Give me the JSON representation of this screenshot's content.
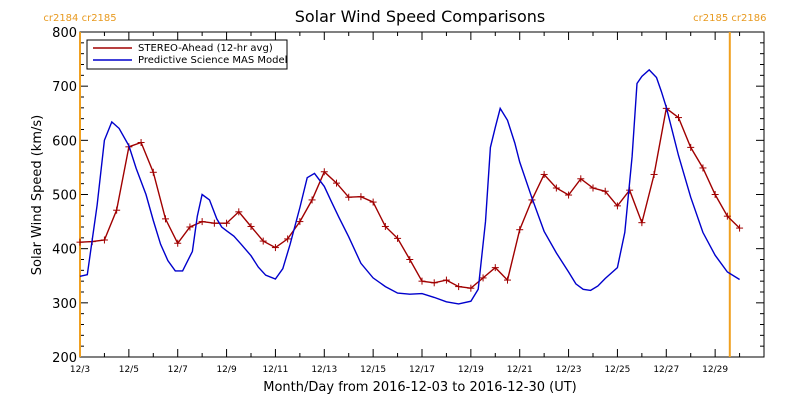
{
  "chart_data": {
    "type": "line",
    "title": "Solar Wind Speed Comparisons",
    "xlabel": "Month/Day from 2016-12-03 to 2016-12-30 (UT)",
    "ylabel": "Solar Wind Speed (km/s)",
    "ylim": [
      200,
      800
    ],
    "xlim": [
      0,
      28
    ],
    "x_start": "2016-12-03",
    "yticks": [
      200,
      300,
      400,
      500,
      600,
      700,
      800
    ],
    "xtick_labels": [
      {
        "x": 0,
        "label": "12/3"
      },
      {
        "x": 2,
        "label": "12/5"
      },
      {
        "x": 4,
        "label": "12/7"
      },
      {
        "x": 6,
        "label": "12/9"
      },
      {
        "x": 8,
        "label": "12/11"
      },
      {
        "x": 10,
        "label": "12/13"
      },
      {
        "x": 12,
        "label": "12/15"
      },
      {
        "x": 14,
        "label": "12/17"
      },
      {
        "x": 16,
        "label": "12/19"
      },
      {
        "x": 18,
        "label": "12/21"
      },
      {
        "x": 20,
        "label": "12/23"
      },
      {
        "x": 22,
        "label": "12/25"
      },
      {
        "x": 24,
        "label": "12/27"
      },
      {
        "x": 26,
        "label": "12/29"
      }
    ],
    "carrington_markers": [
      {
        "x": 0,
        "label_left": "cr2184",
        "label_right": "cr2185",
        "position": "top-left"
      },
      {
        "x": 26.6,
        "label_left": "cr2185",
        "label_right": "cr2186",
        "position": "top-right"
      }
    ],
    "legend_position": "top-left",
    "series": [
      {
        "name": "STEREO-Ahead (12-hr avg)",
        "color": "#a00000",
        "marker": "plus",
        "x": [
          0,
          0.5,
          1,
          1.5,
          2,
          2.5,
          3,
          3.5,
          4,
          4.5,
          5,
          5.5,
          6,
          6.5,
          7,
          7.5,
          8,
          8.5,
          9,
          9.5,
          10,
          10.5,
          11,
          11.5,
          12,
          12.5,
          13,
          13.5,
          14,
          14.5,
          15,
          15.5,
          16,
          16.5,
          17,
          17.5,
          18,
          18.5,
          19,
          19.5,
          20,
          20.5,
          21,
          21.5,
          22,
          22.5,
          23,
          23.5,
          24,
          24.5,
          25,
          25.5,
          26,
          26.5,
          27
        ],
        "values": [
          412,
          413,
          416,
          471,
          588,
          596,
          541,
          455,
          410,
          440,
          450,
          447,
          447,
          468,
          441,
          414,
          402,
          418,
          450,
          490,
          542,
          521,
          495,
          496,
          486,
          441,
          419,
          380,
          340,
          337,
          342,
          330,
          327,
          346,
          365,
          342,
          435,
          490,
          537,
          512,
          499,
          529,
          512,
          506,
          479,
          508,
          448,
          537,
          659,
          642,
          587,
          549,
          500,
          460,
          438
        ]
      },
      {
        "name": "Predictive Science MAS Model",
        "color": "#0000cc",
        "marker": "none",
        "x": [
          0,
          0.3,
          0.7,
          1,
          1.3,
          1.6,
          2,
          2.3,
          2.7,
          3,
          3.3,
          3.6,
          3.9,
          4.2,
          4.6,
          4.8,
          5,
          5.3,
          5.6,
          5.8,
          6,
          6.3,
          6.6,
          7,
          7.3,
          7.6,
          8,
          8.3,
          8.6,
          9,
          9.3,
          9.6,
          10,
          10.3,
          10.6,
          11,
          11.5,
          12,
          12.5,
          13,
          13.5,
          14,
          14.5,
          15,
          15.5,
          16,
          16.3,
          16.6,
          16.8,
          17,
          17.2,
          17.5,
          17.8,
          18,
          18.5,
          19,
          19.5,
          20,
          20.3,
          20.6,
          20.9,
          21.2,
          21.5,
          22,
          22.3,
          22.6,
          22.8,
          23,
          23.3,
          23.6,
          23.8,
          24,
          24.5,
          25,
          25.5,
          26,
          26.5,
          27
        ],
        "values": [
          349,
          352,
          480,
          600,
          634,
          622,
          590,
          548,
          500,
          452,
          408,
          378,
          359,
          359,
          395,
          460,
          500,
          490,
          455,
          440,
          433,
          423,
          408,
          387,
          366,
          351,
          344,
          363,
          408,
          476,
          531,
          539,
          515,
          486,
          458,
          422,
          373,
          346,
          330,
          318,
          316,
          317,
          310,
          302,
          298,
          303,
          325,
          450,
          587,
          624,
          659,
          637,
          595,
          560,
          494,
          432,
          392,
          357,
          335,
          325,
          323,
          331,
          345,
          365,
          430,
          570,
          705,
          718,
          730,
          716,
          690,
          661,
          572,
          495,
          430,
          388,
          357,
          343
        ]
      }
    ]
  }
}
